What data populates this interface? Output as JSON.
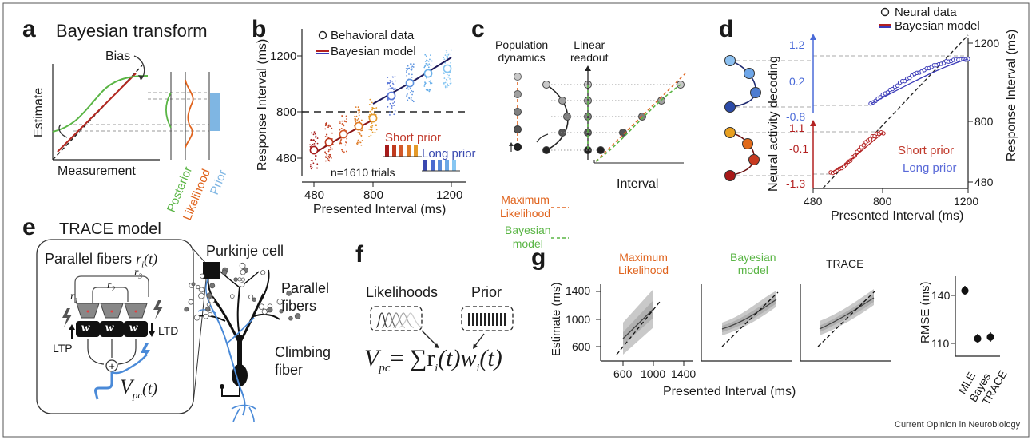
{
  "panel_labels": [
    "a",
    "b",
    "c",
    "d",
    "e",
    "f",
    "g"
  ],
  "a": {
    "title": "Bayesian transform",
    "bias": "Bias",
    "ylabel": "Estimate",
    "xlabel": "Measurement",
    "posterior": "Posterior",
    "likelihood": "Likelihood",
    "prior": "Prior"
  },
  "b": {
    "legend_data": "Behavioral data",
    "legend_model": "Bayesian model",
    "ylabel": "Response Interval (ms)",
    "xlabel": "Presented Interval (ms)",
    "yticks": [
      "480",
      "800",
      "1200"
    ],
    "xticks": [
      "480",
      "800",
      "1200"
    ],
    "short_prior": "Short prior",
    "long_prior": "Long prior",
    "ntrials": "n=1610 trials"
  },
  "c": {
    "pop_dynamics": "Population\ndynamics",
    "linear_readout": "Linear\nreadout",
    "max_likelihood": "Maximum\nLikelihood",
    "bayesian_model": "Bayesian\nmodel",
    "interval": "Interval"
  },
  "d": {
    "legend_data": "Neural data",
    "legend_model": "Bayesian model",
    "ylabel_left": "Neural activity decoding",
    "ylabel_right": "Response Interval (ms)",
    "xlabel": "Presented Interval (ms)",
    "yticks_blue": [
      "1.2",
      "0.2",
      "-0.8"
    ],
    "yticks_red": [
      "1.1",
      "-0.1",
      "-1.3"
    ],
    "yticks_right": [
      "1200",
      "800",
      "480"
    ],
    "xticks": [
      "480",
      "800",
      "1200"
    ],
    "short_prior": "Short prior",
    "long_prior": "Long prior"
  },
  "e": {
    "title": "TRACE model",
    "parallel_fibers_ri": "Parallel fibers",
    "ri_symbol": "r",
    "ri_sub": "i",
    "ri_t": "(t)",
    "r1": "r",
    "r1_sub": "1",
    "r2": "r",
    "r2_sub": "2",
    "r3": "r",
    "r3_sub": "3",
    "w": "w",
    "ltp": "LTP",
    "ltd": "LTD",
    "vpc": "V",
    "vpc_sub": "pc",
    "vpc_t": "(t)",
    "purkinje": "Purkinje cell",
    "parallel_fibers": "Parallel\nfibers",
    "climbing_fiber": "Climbing\nfiber"
  },
  "f": {
    "likelihoods": "Likelihoods",
    "prior": "Prior",
    "eq_v": "V",
    "eq_pc": "pc",
    "eq_rest": "= ∑r",
    "eq_i1": "i",
    "eq_t1": "(t)w",
    "eq_i2": "i",
    "eq_t2": "(t)"
  },
  "g": {
    "titles": [
      "Maximum\nLikelihood",
      "Bayesian\nmodel",
      "TRACE"
    ],
    "ylabel": "Estimate (ms)",
    "xlabel": "Presented Interval (ms)",
    "yticks": [
      "1400",
      "1000",
      "600"
    ],
    "xticks": [
      "600",
      "1000",
      "1400"
    ],
    "rmse_ylabel": "RMSE (ms)",
    "rmse_yticks": [
      "140",
      "110"
    ],
    "rmse_categories": [
      "MLE",
      "Bayes",
      "TRACE"
    ],
    "rmse_values": [
      143,
      113,
      114
    ]
  },
  "credit": "Current Opinion in Neurobiology",
  "colors": {
    "green": "#5ab545",
    "orange": "#e0641e",
    "blue_prior": "#7fb6e3",
    "short_dark": "#b32020",
    "long_blue": "#4a5cc6",
    "axis_blue": "#4a6ad8",
    "axis_red": "#b32020",
    "gray_band": "#c9c9c9"
  }
}
